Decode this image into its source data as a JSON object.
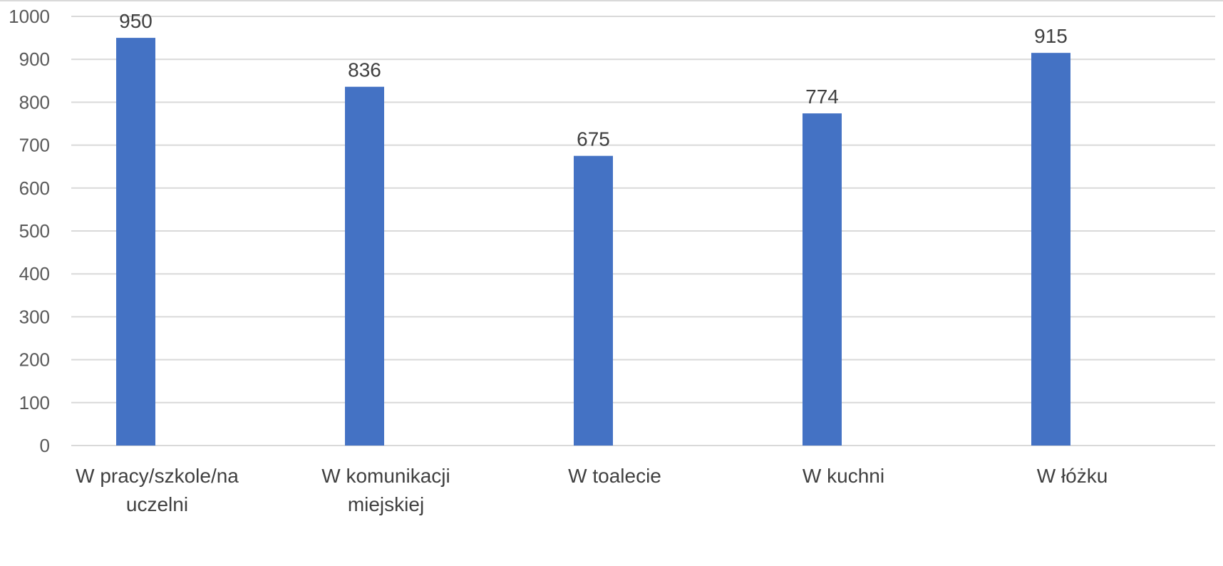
{
  "chart_data": {
    "type": "bar",
    "title": "",
    "xlabel": "",
    "ylabel": "",
    "categories": [
      [
        "W pracy/szkole/na",
        "uczelni"
      ],
      [
        "W komunikacji",
        "miejskiej"
      ],
      [
        "W toalecie"
      ],
      [
        "W kuchni"
      ],
      [
        "W łóżku"
      ]
    ],
    "values": [
      950,
      836,
      675,
      774,
      915
    ],
    "ylim": [
      0,
      1000
    ],
    "yticks": [
      0,
      100,
      200,
      300,
      400,
      500,
      600,
      700,
      800,
      900,
      1000
    ],
    "grid": true,
    "legend": "none",
    "bar_color": "#4472c4",
    "grid_color": "#d9d9d9",
    "text_color": "#404040"
  }
}
